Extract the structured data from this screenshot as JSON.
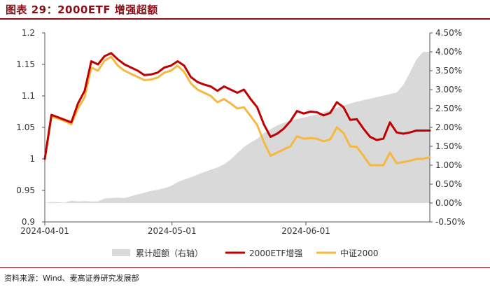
{
  "header": {
    "title": "图表 29：2000ETF 增强超额"
  },
  "footer": {
    "source": "资料来源：Wind、麦高证券研究发展部"
  },
  "colors": {
    "brand": "#8b0e16",
    "area": "#d9d9d9",
    "etf": "#c00000",
    "index": "#f5b942"
  },
  "chart_data": {
    "type": "line",
    "x_ticks": [
      "2024-04-01",
      "2024-05-01",
      "2024-06-01"
    ],
    "left_axis": {
      "ylim": [
        0.9,
        1.2
      ],
      "ticks": [
        "0.9",
        "0.95",
        "1",
        "1.05",
        "1.1",
        "1.15",
        "1.2"
      ]
    },
    "right_axis": {
      "ylim": [
        -0.005,
        0.045
      ],
      "ticks": [
        "-0.50%",
        "0.00%",
        "0.50%",
        "1.00%",
        "1.50%",
        "2.00%",
        "2.50%",
        "3.00%",
        "3.50%",
        "4.00%",
        "4.50%"
      ]
    },
    "grid": false,
    "legend_position": "bottom",
    "x": [
      "2024-04-01",
      "2024-04-02",
      "2024-04-03",
      "2024-04-08",
      "2024-04-09",
      "2024-04-10",
      "2024-04-11",
      "2024-04-12",
      "2024-04-15",
      "2024-04-16",
      "2024-04-17",
      "2024-04-18",
      "2024-04-19",
      "2024-04-22",
      "2024-04-23",
      "2024-04-24",
      "2024-04-25",
      "2024-04-26",
      "2024-04-29",
      "2024-04-30",
      "2024-05-06",
      "2024-05-07",
      "2024-05-08",
      "2024-05-09",
      "2024-05-10",
      "2024-05-13",
      "2024-05-14",
      "2024-05-15",
      "2024-05-16",
      "2024-05-17",
      "2024-05-20",
      "2024-05-21",
      "2024-05-22",
      "2024-05-23",
      "2024-05-24",
      "2024-05-27",
      "2024-05-28",
      "2024-05-29",
      "2024-05-30",
      "2024-05-31",
      "2024-06-03",
      "2024-06-04",
      "2024-06-05",
      "2024-06-06",
      "2024-06-07",
      "2024-06-11",
      "2024-06-12",
      "2024-06-13",
      "2024-06-14",
      "2024-06-17",
      "2024-06-18",
      "2024-06-19",
      "2024-06-20",
      "2024-06-21",
      "2024-06-24",
      "2024-06-25",
      "2024-06-26",
      "2024-06-27",
      "2024-06-28"
    ],
    "series": [
      {
        "name": "累计超额（右轴）",
        "axis": "right",
        "kind": "area",
        "values": [
          0.0,
          0.0003,
          0.0002,
          0.0001,
          0.0006,
          0.0004,
          0.0005,
          0.0004,
          0.0004,
          0.0012,
          0.0013,
          0.0014,
          0.0013,
          0.0018,
          0.0023,
          0.0027,
          0.0032,
          0.0035,
          0.0039,
          0.0045,
          0.0055,
          0.0062,
          0.0068,
          0.0075,
          0.0082,
          0.0088,
          0.0094,
          0.0102,
          0.0115,
          0.0132,
          0.0148,
          0.016,
          0.017,
          0.0185,
          0.0195,
          0.0205,
          0.0212,
          0.0218,
          0.0222,
          0.0226,
          0.023,
          0.0235,
          0.024,
          0.0246,
          0.0252,
          0.0258,
          0.0263,
          0.0268,
          0.0272,
          0.0276,
          0.028,
          0.0284,
          0.0288,
          0.0292,
          0.0312,
          0.0345,
          0.038,
          0.04,
          0.04
        ]
      },
      {
        "name": "2000ETF增强",
        "axis": "left",
        "kind": "line",
        "values": [
          1.0,
          1.07,
          1.066,
          1.062,
          1.058,
          1.088,
          1.108,
          1.155,
          1.15,
          1.163,
          1.168,
          1.158,
          1.15,
          1.145,
          1.14,
          1.133,
          1.134,
          1.137,
          1.145,
          1.148,
          1.155,
          1.148,
          1.13,
          1.122,
          1.118,
          1.115,
          1.108,
          1.115,
          1.11,
          1.105,
          1.11,
          1.095,
          1.082,
          1.055,
          1.035,
          1.04,
          1.048,
          1.06,
          1.076,
          1.072,
          1.075,
          1.074,
          1.069,
          1.073,
          1.09,
          1.082,
          1.062,
          1.063,
          1.048,
          1.035,
          1.03,
          1.032,
          1.058,
          1.042,
          1.04,
          1.042,
          1.045,
          1.045,
          1.045
        ]
      },
      {
        "name": "中证2000",
        "axis": "left",
        "kind": "line",
        "values": [
          1.0,
          1.067,
          1.064,
          1.06,
          1.055,
          1.08,
          1.098,
          1.145,
          1.14,
          1.156,
          1.162,
          1.148,
          1.14,
          1.135,
          1.13,
          1.125,
          1.126,
          1.129,
          1.137,
          1.14,
          1.148,
          1.138,
          1.12,
          1.11,
          1.105,
          1.1,
          1.09,
          1.095,
          1.088,
          1.08,
          1.082,
          1.068,
          1.054,
          1.027,
          1.005,
          1.01,
          1.015,
          1.02,
          1.036,
          1.032,
          1.033,
          1.032,
          1.028,
          1.031,
          1.05,
          1.041,
          1.02,
          1.019,
          1.005,
          0.99,
          0.99,
          0.99,
          1.01,
          0.993,
          0.995,
          0.997,
          1.0,
          1.0,
          1.003
        ]
      }
    ]
  }
}
